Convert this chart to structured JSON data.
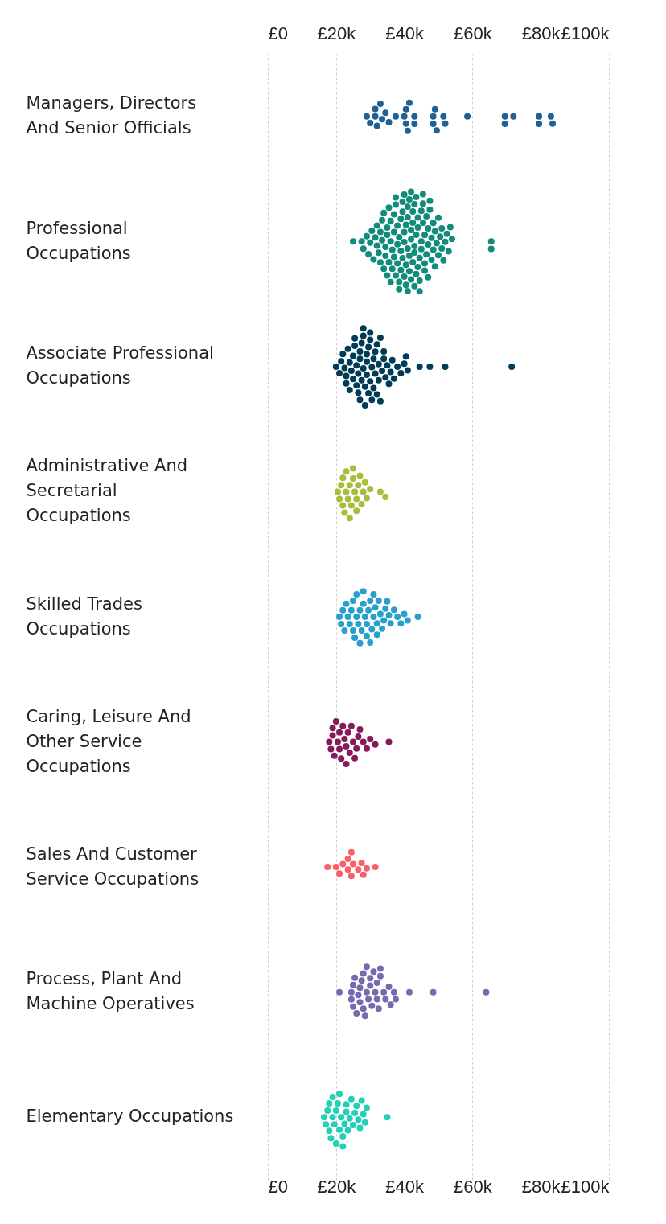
{
  "chart_data": {
    "type": "scatter",
    "orientation": "horizontal",
    "marker": "circle",
    "grid": "x",
    "legend": false,
    "categories": [
      "Managers, Directors And Senior Officials",
      "Professional Occupations",
      "Associate Professional Occupations",
      "Administrative And Secretarial Occupations",
      "Skilled Trades Occupations",
      "Caring, Leisure And Other Service Occupations",
      "Sales And Customer Service Occupations",
      "Process, Plant And Machine Operatives",
      "Elementary Occupations"
    ],
    "xlim": [
      0,
      100
    ],
    "xticks": [
      {
        "value": 0,
        "label": "£0"
      },
      {
        "value": 20,
        "label": "£20k"
      },
      {
        "value": 40,
        "label": "£40k"
      },
      {
        "value": 60,
        "label": "£60k"
      },
      {
        "value": 80,
        "label": "£80k"
      },
      {
        "value": 100,
        "label": "£100k"
      }
    ],
    "x2lim": [
      0,
      100
    ],
    "x2ticks": [
      {
        "value": 0,
        "label": "£0"
      },
      {
        "value": 20,
        "label": "£20k"
      },
      {
        "value": 40,
        "label": "£40k"
      },
      {
        "value": 60,
        "label": "£60k"
      },
      {
        "value": 80,
        "label": "£80k"
      },
      {
        "value": 100,
        "label": "£100k"
      }
    ],
    "series": [
      {
        "color": "#206095",
        "x": [
          "Managers, Directors And Senior Officials",
          "Managers, Directors And Senior Officials",
          "Managers, Directors And Senior Officials",
          "Managers, Directors And Senior Officials",
          "Managers, Directors And Senior Officials",
          "Managers, Directors And Senior Officials",
          "Managers, Directors And Senior Officials",
          "Managers, Directors And Senior Officials",
          "Managers, Directors And Senior Officials",
          "Managers, Directors And Senior Officials",
          "Managers, Directors And Senior Officials",
          "Managers, Directors And Senior Officials",
          "Managers, Directors And Senior Officials",
          "Managers, Directors And Senior Officials",
          "Managers, Directors And Senior Officials",
          "Managers, Directors And Senior Officials",
          "Managers, Directors And Senior Officials",
          "Managers, Directors And Senior Officials",
          "Managers, Directors And Senior Officials",
          "Managers, Directors And Senior Officials",
          "Managers, Directors And Senior Officials",
          "Managers, Directors And Senior Officials",
          "Managers, Directors And Senior Officials",
          "Managers, Directors And Senior Officials",
          "Managers, Directors And Senior Officials",
          "Managers, Directors And Senior Officials",
          "Managers, Directors And Senior Officials",
          "Managers, Directors And Senior Officials",
          "Managers, Directors And Senior Officials",
          "Managers, Directors And Senior Officials",
          "Managers, Directors And Senior Officials"
        ],
        "values": [
          29,
          30,
          31.5,
          31.5,
          32,
          33,
          33.5,
          34.5,
          35.5,
          37.5,
          40,
          40.5,
          40.5,
          41,
          41.5,
          43,
          43,
          48.5,
          48.5,
          49,
          49.5,
          51.5,
          52,
          58.5,
          69.5,
          69.5,
          72,
          79.5,
          79.5,
          83,
          83.5
        ]
      },
      {
        "color": "#118c7b",
        "x": [
          "Professional Occupations",
          "Professional Occupations",
          "Professional Occupations",
          "Professional Occupations",
          "Professional Occupations",
          "Professional Occupations",
          "Professional Occupations",
          "Professional Occupations",
          "Professional Occupations",
          "Professional Occupations",
          "Professional Occupations",
          "Professional Occupations",
          "Professional Occupations",
          "Professional Occupations",
          "Professional Occupations",
          "Professional Occupations",
          "Professional Occupations",
          "Professional Occupations",
          "Professional Occupations",
          "Professional Occupations",
          "Professional Occupations",
          "Professional Occupations",
          "Professional Occupations",
          "Professional Occupations",
          "Professional Occupations",
          "Professional Occupations",
          "Professional Occupations",
          "Professional Occupations",
          "Professional Occupations",
          "Professional Occupations",
          "Professional Occupations",
          "Professional Occupations",
          "Professional Occupations",
          "Professional Occupations",
          "Professional Occupations",
          "Professional Occupations",
          "Professional Occupations",
          "Professional Occupations",
          "Professional Occupations",
          "Professional Occupations",
          "Professional Occupations",
          "Professional Occupations",
          "Professional Occupations",
          "Professional Occupations",
          "Professional Occupations",
          "Professional Occupations",
          "Professional Occupations",
          "Professional Occupations",
          "Professional Occupations",
          "Professional Occupations",
          "Professional Occupations",
          "Professional Occupations",
          "Professional Occupations",
          "Professional Occupations",
          "Professional Occupations",
          "Professional Occupations",
          "Professional Occupations",
          "Professional Occupations",
          "Professional Occupations",
          "Professional Occupations",
          "Professional Occupations",
          "Professional Occupations",
          "Professional Occupations",
          "Professional Occupations",
          "Professional Occupations",
          "Professional Occupations",
          "Professional Occupations",
          "Professional Occupations",
          "Professional Occupations",
          "Professional Occupations",
          "Professional Occupations",
          "Professional Occupations",
          "Professional Occupations",
          "Professional Occupations",
          "Professional Occupations",
          "Professional Occupations",
          "Professional Occupations",
          "Professional Occupations",
          "Professional Occupations",
          "Professional Occupations",
          "Professional Occupations",
          "Professional Occupations",
          "Professional Occupations",
          "Professional Occupations",
          "Professional Occupations",
          "Professional Occupations",
          "Professional Occupations",
          "Professional Occupations",
          "Professional Occupations",
          "Professional Occupations",
          "Professional Occupations",
          "Professional Occupations",
          "Professional Occupations",
          "Professional Occupations",
          "Professional Occupations",
          "Professional Occupations",
          "Professional Occupations",
          "Professional Occupations",
          "Professional Occupations",
          "Professional Occupations",
          "Professional Occupations",
          "Professional Occupations",
          "Professional Occupations",
          "Professional Occupations",
          "Professional Occupations",
          "Professional Occupations",
          "Professional Occupations",
          "Professional Occupations",
          "Professional Occupations",
          "Professional Occupations",
          "Professional Occupations",
          "Professional Occupations",
          "Professional Occupations",
          "Professional Occupations",
          "Professional Occupations",
          "Professional Occupations",
          "Professional Occupations",
          "Professional Occupations"
        ],
        "values": [
          25,
          27.5,
          28,
          29,
          29.5,
          30,
          30.5,
          31,
          31.5,
          32,
          32,
          32.5,
          33,
          33,
          33.5,
          33.5,
          34,
          34,
          34.5,
          34.5,
          35,
          35,
          35,
          35.5,
          35.5,
          36,
          36,
          36,
          36.5,
          36.5,
          37,
          37,
          37,
          37.5,
          37.5,
          37.5,
          38,
          38,
          38,
          38.5,
          38.5,
          38.5,
          39,
          39,
          39,
          39.5,
          39.5,
          39.5,
          40,
          40,
          40,
          40,
          40.5,
          40.5,
          40.5,
          41,
          41,
          41,
          41,
          41.5,
          41.5,
          41.5,
          42,
          42,
          42,
          42,
          42.5,
          42.5,
          42.5,
          43,
          43,
          43,
          43,
          43.5,
          43.5,
          43.5,
          44,
          44,
          44,
          44.5,
          44.5,
          44.5,
          45,
          45,
          45,
          45.5,
          45.5,
          45.5,
          46,
          46,
          46,
          46.5,
          46.5,
          47,
          47,
          47,
          47.5,
          47.5,
          48,
          48,
          48.5,
          48.5,
          49,
          49,
          49.5,
          50,
          50,
          50.5,
          51,
          51,
          51.5,
          52,
          52.5,
          53,
          53.5,
          54,
          65.5,
          65.5
        ]
      },
      {
        "color": "#003c57",
        "x": [
          "Associate Professional Occupations",
          "Associate Professional Occupations",
          "Associate Professional Occupations",
          "Associate Professional Occupations",
          "Associate Professional Occupations",
          "Associate Professional Occupations",
          "Associate Professional Occupations",
          "Associate Professional Occupations",
          "Associate Professional Occupations",
          "Associate Professional Occupations",
          "Associate Professional Occupations",
          "Associate Professional Occupations",
          "Associate Professional Occupations",
          "Associate Professional Occupations",
          "Associate Professional Occupations",
          "Associate Professional Occupations",
          "Associate Professional Occupations",
          "Associate Professional Occupations",
          "Associate Professional Occupations",
          "Associate Professional Occupations",
          "Associate Professional Occupations",
          "Associate Professional Occupations",
          "Associate Professional Occupations",
          "Associate Professional Occupations",
          "Associate Professional Occupations",
          "Associate Professional Occupations",
          "Associate Professional Occupations",
          "Associate Professional Occupations",
          "Associate Professional Occupations",
          "Associate Professional Occupations",
          "Associate Professional Occupations",
          "Associate Professional Occupations",
          "Associate Professional Occupations",
          "Associate Professional Occupations",
          "Associate Professional Occupations",
          "Associate Professional Occupations",
          "Associate Professional Occupations",
          "Associate Professional Occupations",
          "Associate Professional Occupations",
          "Associate Professional Occupations",
          "Associate Professional Occupations",
          "Associate Professional Occupations",
          "Associate Professional Occupations",
          "Associate Professional Occupations",
          "Associate Professional Occupations",
          "Associate Professional Occupations",
          "Associate Professional Occupations",
          "Associate Professional Occupations",
          "Associate Professional Occupations",
          "Associate Professional Occupations",
          "Associate Professional Occupations",
          "Associate Professional Occupations",
          "Associate Professional Occupations",
          "Associate Professional Occupations",
          "Associate Professional Occupations",
          "Associate Professional Occupations",
          "Associate Professional Occupations",
          "Associate Professional Occupations",
          "Associate Professional Occupations",
          "Associate Professional Occupations",
          "Associate Professional Occupations",
          "Associate Professional Occupations",
          "Associate Professional Occupations",
          "Associate Professional Occupations",
          "Associate Professional Occupations",
          "Associate Professional Occupations",
          "Associate Professional Occupations"
        ],
        "values": [
          20,
          21,
          21.5,
          22,
          22.5,
          23,
          23,
          23.5,
          24,
          24,
          24.5,
          25,
          25,
          25.5,
          25.5,
          26,
          26,
          26.5,
          26.5,
          27,
          27,
          27,
          27.5,
          27.5,
          28,
          28,
          28,
          28.5,
          28.5,
          29,
          29,
          29,
          29.5,
          29.5,
          30,
          30,
          30,
          30.5,
          30.5,
          31,
          31,
          31.5,
          31.5,
          32,
          32,
          32.5,
          32.5,
          33,
          33,
          33.5,
          34,
          34,
          34.5,
          35,
          35.5,
          36,
          36.5,
          37,
          38,
          39,
          40,
          40.5,
          41,
          44.5,
          47.5,
          52,
          71.5
        ]
      },
      {
        "color": "#a8bd3a",
        "x": [
          "Administrative And Secretarial Occupations",
          "Administrative And Secretarial Occupations",
          "Administrative And Secretarial Occupations",
          "Administrative And Secretarial Occupations",
          "Administrative And Secretarial Occupations",
          "Administrative And Secretarial Occupations",
          "Administrative And Secretarial Occupations",
          "Administrative And Secretarial Occupations",
          "Administrative And Secretarial Occupations",
          "Administrative And Secretarial Occupations",
          "Administrative And Secretarial Occupations",
          "Administrative And Secretarial Occupations",
          "Administrative And Secretarial Occupations",
          "Administrative And Secretarial Occupations",
          "Administrative And Secretarial Occupations",
          "Administrative And Secretarial Occupations",
          "Administrative And Secretarial Occupations",
          "Administrative And Secretarial Occupations",
          "Administrative And Secretarial Occupations",
          "Administrative And Secretarial Occupations",
          "Administrative And Secretarial Occupations",
          "Administrative And Secretarial Occupations",
          "Administrative And Secretarial Occupations",
          "Administrative And Secretarial Occupations",
          "Administrative And Secretarial Occupations",
          "Administrative And Secretarial Occupations"
        ],
        "values": [
          20.5,
          21,
          21.5,
          22,
          22,
          22.5,
          23,
          23,
          23.5,
          24,
          24,
          24.5,
          25,
          25,
          25.5,
          26,
          26,
          26.5,
          27,
          27.5,
          28,
          28.5,
          29,
          30,
          33,
          34.5
        ]
      },
      {
        "color": "#27a0cc",
        "x": [
          "Skilled Trades Occupations",
          "Skilled Trades Occupations",
          "Skilled Trades Occupations",
          "Skilled Trades Occupations",
          "Skilled Trades Occupations",
          "Skilled Trades Occupations",
          "Skilled Trades Occupations",
          "Skilled Trades Occupations",
          "Skilled Trades Occupations",
          "Skilled Trades Occupations",
          "Skilled Trades Occupations",
          "Skilled Trades Occupations",
          "Skilled Trades Occupations",
          "Skilled Trades Occupations",
          "Skilled Trades Occupations",
          "Skilled Trades Occupations",
          "Skilled Trades Occupations",
          "Skilled Trades Occupations",
          "Skilled Trades Occupations",
          "Skilled Trades Occupations",
          "Skilled Trades Occupations",
          "Skilled Trades Occupations",
          "Skilled Trades Occupations",
          "Skilled Trades Occupations",
          "Skilled Trades Occupations",
          "Skilled Trades Occupations",
          "Skilled Trades Occupations",
          "Skilled Trades Occupations",
          "Skilled Trades Occupations",
          "Skilled Trades Occupations",
          "Skilled Trades Occupations",
          "Skilled Trades Occupations",
          "Skilled Trades Occupations",
          "Skilled Trades Occupations",
          "Skilled Trades Occupations",
          "Skilled Trades Occupations",
          "Skilled Trades Occupations",
          "Skilled Trades Occupations",
          "Skilled Trades Occupations",
          "Skilled Trades Occupations",
          "Skilled Trades Occupations",
          "Skilled Trades Occupations",
          "Skilled Trades Occupations",
          "Skilled Trades Occupations",
          "Skilled Trades Occupations"
        ],
        "values": [
          21,
          21.5,
          22,
          22.5,
          23,
          23.5,
          24,
          24.5,
          25,
          25,
          25.5,
          26,
          26,
          26.5,
          27,
          27,
          27.5,
          28,
          28,
          28.5,
          29,
          29,
          29.5,
          30,
          30,
          30.5,
          31,
          31,
          31.5,
          32,
          32,
          32.5,
          33,
          33.5,
          34,
          34.5,
          35,
          35.5,
          36,
          37,
          38,
          39,
          40,
          41,
          44
        ]
      },
      {
        "color": "#871a5b",
        "x": [
          "Caring, Leisure And Other Service Occupations",
          "Caring, Leisure And Other Service Occupations",
          "Caring, Leisure And Other Service Occupations",
          "Caring, Leisure And Other Service Occupations",
          "Caring, Leisure And Other Service Occupations",
          "Caring, Leisure And Other Service Occupations",
          "Caring, Leisure And Other Service Occupations",
          "Caring, Leisure And Other Service Occupations",
          "Caring, Leisure And Other Service Occupations",
          "Caring, Leisure And Other Service Occupations",
          "Caring, Leisure And Other Service Occupations",
          "Caring, Leisure And Other Service Occupations",
          "Caring, Leisure And Other Service Occupations",
          "Caring, Leisure And Other Service Occupations",
          "Caring, Leisure And Other Service Occupations",
          "Caring, Leisure And Other Service Occupations",
          "Caring, Leisure And Other Service Occupations",
          "Caring, Leisure And Other Service Occupations",
          "Caring, Leisure And Other Service Occupations",
          "Caring, Leisure And Other Service Occupations",
          "Caring, Leisure And Other Service Occupations",
          "Caring, Leisure And Other Service Occupations",
          "Caring, Leisure And Other Service Occupations",
          "Caring, Leisure And Other Service Occupations",
          "Caring, Leisure And Other Service Occupations",
          "Caring, Leisure And Other Service Occupations",
          "Caring, Leisure And Other Service Occupations"
        ],
        "values": [
          18,
          18.5,
          19,
          19,
          19.5,
          20,
          20.5,
          21,
          21,
          21.5,
          22,
          22.5,
          23,
          23,
          23.5,
          24,
          24.5,
          25,
          25.5,
          26,
          26.5,
          27,
          28,
          29,
          30,
          31.5,
          35.5
        ]
      },
      {
        "color": "#f66068",
        "x": [
          "Sales And Customer Service Occupations",
          "Sales And Customer Service Occupations",
          "Sales And Customer Service Occupations",
          "Sales And Customer Service Occupations",
          "Sales And Customer Service Occupations",
          "Sales And Customer Service Occupations",
          "Sales And Customer Service Occupations",
          "Sales And Customer Service Occupations",
          "Sales And Customer Service Occupations",
          "Sales And Customer Service Occupations",
          "Sales And Customer Service Occupations",
          "Sales And Customer Service Occupations",
          "Sales And Customer Service Occupations",
          "Sales And Customer Service Occupations"
        ],
        "values": [
          17.5,
          20,
          21,
          22,
          23.5,
          23.5,
          24.5,
          24.5,
          25,
          26.5,
          27.5,
          28,
          29,
          31.5
        ]
      },
      {
        "color": "#746cb1",
        "x": [
          "Process, Plant And Machine Operatives",
          "Process, Plant And Machine Operatives",
          "Process, Plant And Machine Operatives",
          "Process, Plant And Machine Operatives",
          "Process, Plant And Machine Operatives",
          "Process, Plant And Machine Operatives",
          "Process, Plant And Machine Operatives",
          "Process, Plant And Machine Operatives",
          "Process, Plant And Machine Operatives",
          "Process, Plant And Machine Operatives",
          "Process, Plant And Machine Operatives",
          "Process, Plant And Machine Operatives",
          "Process, Plant And Machine Operatives",
          "Process, Plant And Machine Operatives",
          "Process, Plant And Machine Operatives",
          "Process, Plant And Machine Operatives",
          "Process, Plant And Machine Operatives",
          "Process, Plant And Machine Operatives",
          "Process, Plant And Machine Operatives",
          "Process, Plant And Machine Operatives",
          "Process, Plant And Machine Operatives",
          "Process, Plant And Machine Operatives",
          "Process, Plant And Machine Operatives",
          "Process, Plant And Machine Operatives",
          "Process, Plant And Machine Operatives",
          "Process, Plant And Machine Operatives",
          "Process, Plant And Machine Operatives",
          "Process, Plant And Machine Operatives",
          "Process, Plant And Machine Operatives",
          "Process, Plant And Machine Operatives",
          "Process, Plant And Machine Operatives",
          "Process, Plant And Machine Operatives",
          "Process, Plant And Machine Operatives",
          "Process, Plant And Machine Operatives",
          "Process, Plant And Machine Operatives",
          "Process, Plant And Machine Operatives"
        ],
        "values": [
          21,
          24.5,
          24.5,
          25,
          25,
          25.5,
          26,
          26.5,
          27,
          27,
          27.5,
          28,
          28,
          28.5,
          29,
          29,
          29.5,
          30,
          30,
          30.5,
          31,
          31.5,
          32,
          32,
          32.5,
          33,
          33,
          34,
          34.5,
          35.5,
          36,
          37,
          37.5,
          41.5,
          48.5,
          64
        ]
      },
      {
        "color": "#22d0b6",
        "x": [
          "Elementary Occupations",
          "Elementary Occupations",
          "Elementary Occupations",
          "Elementary Occupations",
          "Elementary Occupations",
          "Elementary Occupations",
          "Elementary Occupations",
          "Elementary Occupations",
          "Elementary Occupations",
          "Elementary Occupations",
          "Elementary Occupations",
          "Elementary Occupations",
          "Elementary Occupations",
          "Elementary Occupations",
          "Elementary Occupations",
          "Elementary Occupations",
          "Elementary Occupations",
          "Elementary Occupations",
          "Elementary Occupations",
          "Elementary Occupations",
          "Elementary Occupations",
          "Elementary Occupations",
          "Elementary Occupations",
          "Elementary Occupations",
          "Elementary Occupations",
          "Elementary Occupations",
          "Elementary Occupations",
          "Elementary Occupations",
          "Elementary Occupations",
          "Elementary Occupations",
          "Elementary Occupations",
          "Elementary Occupations",
          "Elementary Occupations"
        ],
        "values": [
          16.5,
          17,
          17.5,
          18,
          18,
          18.5,
          19,
          19,
          19.5,
          20,
          20,
          20.5,
          21,
          21,
          21.5,
          22,
          22,
          22.5,
          23,
          23,
          23.5,
          24,
          24.5,
          25,
          25.5,
          26,
          26.5,
          27,
          27.5,
          28,
          28.5,
          29,
          35
        ]
      }
    ]
  }
}
